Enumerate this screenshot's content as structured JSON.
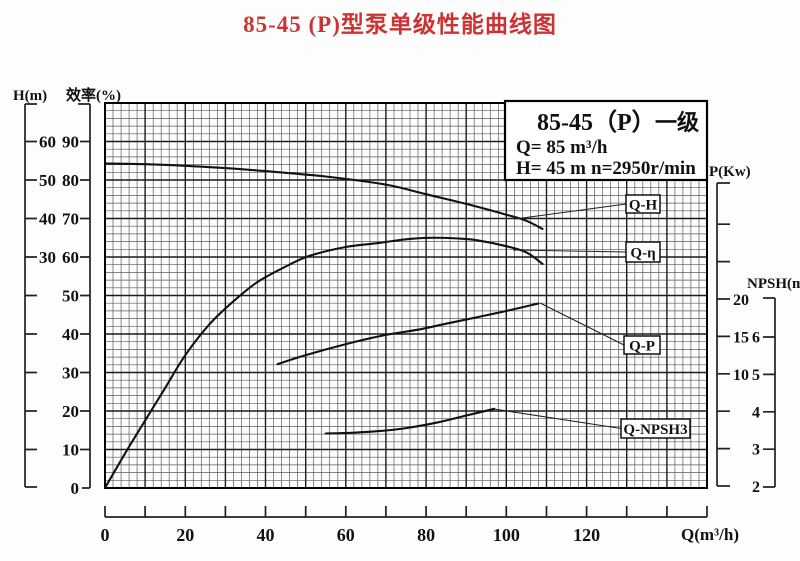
{
  "title": "85-45 (P)型泵单级性能曲线图",
  "colors": {
    "title": "#cc3333",
    "curve": "#111111",
    "grid_minor": "#5c5c5c",
    "grid_major": "#1c1c1c",
    "axis": "#222222"
  },
  "info_box": {
    "model": "85-45（P）",
    "stage": "一级",
    "flow": "Q= 85 m³/h",
    "head": "H= 45 m",
    "speed": "n=2950r/min"
  },
  "chart_data": {
    "type": "line",
    "title": "85-45 (P)型泵单级性能曲线图",
    "grid": "on",
    "x_axis": {
      "label": "Q(m³/h)",
      "min": 0,
      "max": 150,
      "tick_step": 10,
      "labeled_ticks": [
        0,
        20,
        40,
        60,
        80,
        100,
        120
      ]
    },
    "axes": {
      "head": {
        "label": "H(m)",
        "labeled_ticks": [
          60,
          50,
          40,
          30
        ]
      },
      "efficiency": {
        "label": "效率(%)",
        "labeled_ticks": [
          90,
          80,
          70,
          60,
          50,
          40,
          30,
          20,
          10,
          0
        ]
      },
      "power": {
        "label": "P(Kw)",
        "labeled_ticks": [
          20,
          15,
          10
        ]
      },
      "npsh": {
        "label": "NPSH(m)",
        "labeled_ticks": [
          6,
          5,
          4,
          3,
          2
        ]
      }
    },
    "series": [
      {
        "key": "q-h",
        "name": "Q-H",
        "axis": "head",
        "points": [
          [
            0,
            54.3
          ],
          [
            10,
            54.1
          ],
          [
            20,
            53.7
          ],
          [
            30,
            53.1
          ],
          [
            40,
            52.3
          ],
          [
            55,
            50.9
          ],
          [
            70,
            48.8
          ],
          [
            80,
            46.3
          ],
          [
            90,
            43.8
          ],
          [
            100,
            41.0
          ],
          [
            105,
            39.4
          ],
          [
            109,
            37.3
          ]
        ]
      },
      {
        "key": "q-eta",
        "name": "Q-η",
        "axis": "efficiency",
        "points": [
          [
            0,
            0
          ],
          [
            5,
            9
          ],
          [
            10,
            17.5
          ],
          [
            15,
            26
          ],
          [
            20,
            34.5
          ],
          [
            26,
            42.5
          ],
          [
            32,
            48.5
          ],
          [
            38,
            53.5
          ],
          [
            45,
            57.5
          ],
          [
            51,
            60.3
          ],
          [
            60,
            62.6
          ],
          [
            68,
            63.6
          ],
          [
            75,
            64.6
          ],
          [
            81,
            65
          ],
          [
            88,
            64.8
          ],
          [
            93,
            64.3
          ],
          [
            100,
            62.8
          ],
          [
            105,
            61.2
          ],
          [
            109,
            58.2
          ]
        ]
      },
      {
        "key": "q-p",
        "name": "Q-P",
        "axis": "power",
        "points": [
          [
            43,
            11.3
          ],
          [
            50,
            12.5
          ],
          [
            61,
            14.1
          ],
          [
            70,
            15.2
          ],
          [
            78,
            15.9
          ],
          [
            85,
            16.7
          ],
          [
            93,
            17.6
          ],
          [
            100,
            18.4
          ],
          [
            108,
            19.4
          ]
        ]
      },
      {
        "key": "q-npsh3",
        "name": "Q-NPSH3",
        "axis": "npsh",
        "points": [
          [
            55,
            3.42
          ],
          [
            62,
            3.44
          ],
          [
            70,
            3.5
          ],
          [
            76,
            3.58
          ],
          [
            83,
            3.72
          ],
          [
            90,
            3.9
          ],
          [
            97,
            4.08
          ]
        ]
      }
    ]
  }
}
